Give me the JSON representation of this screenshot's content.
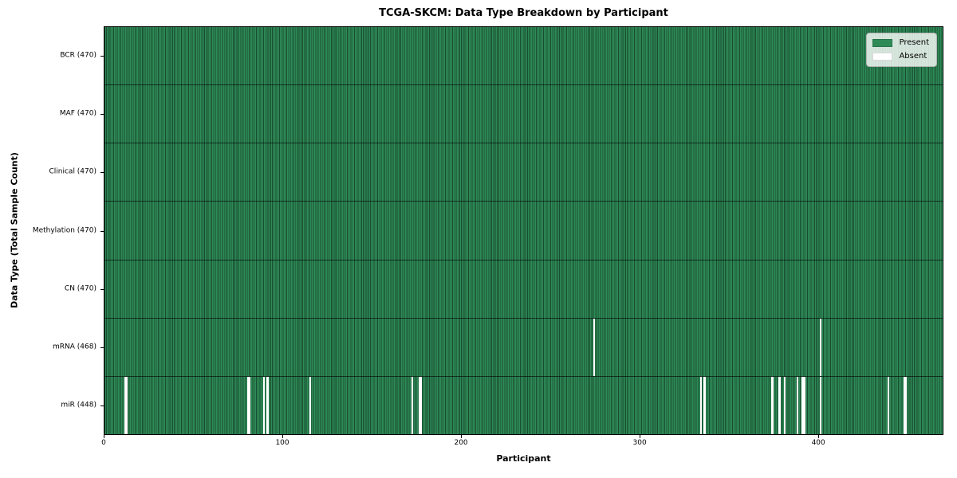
{
  "chart_data": {
    "type": "heatmap",
    "title": "TCGA-SKCM: Data Type Breakdown by Participant",
    "xlabel": "Participant",
    "ylabel": "Data Type (Total Sample Count)",
    "xlim": [
      0,
      470
    ],
    "x_ticks": [
      0,
      100,
      200,
      300,
      400
    ],
    "n_participants": 470,
    "grid": false,
    "legend_position": "upper right",
    "rows": [
      {
        "label": "BCR (470)",
        "data_type": "BCR",
        "total": 470,
        "absent": []
      },
      {
        "label": "MAF (470)",
        "data_type": "MAF",
        "total": 470,
        "absent": []
      },
      {
        "label": "Clinical (470)",
        "data_type": "Clinical",
        "total": 470,
        "absent": []
      },
      {
        "label": "Methylation (470)",
        "data_type": "Methylation",
        "total": 470,
        "absent": []
      },
      {
        "label": "CN (470)",
        "data_type": "CN",
        "total": 470,
        "absent": []
      },
      {
        "label": "mRNA (468)",
        "data_type": "mRNA",
        "total": 468,
        "absent": [
          274,
          401
        ]
      },
      {
        "label": "miR (448)",
        "data_type": "miR",
        "total": 448,
        "absent": [
          11,
          12,
          80,
          81,
          89,
          91,
          115,
          172,
          176,
          177,
          334,
          336,
          374,
          378,
          381,
          388,
          391,
          392,
          401,
          439,
          448,
          449
        ]
      }
    ],
    "legend": [
      {
        "label": "Present",
        "color": "#2e8b57"
      },
      {
        "label": "Absent",
        "color": "#ffffff"
      }
    ],
    "colors": {
      "present": "#2e8b57",
      "absent": "#ffffff",
      "bar_edge": "rgba(0,0,0,0.45)",
      "row_divider": "rgba(0,0,0,0.6)",
      "axis": "#000000",
      "legend_bg": "rgba(255,255,255,0.8)",
      "legend_border": "#b5b5b5"
    }
  }
}
